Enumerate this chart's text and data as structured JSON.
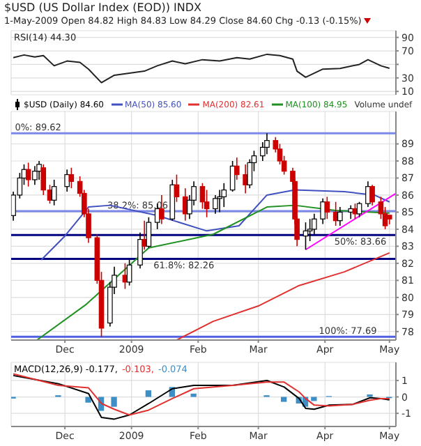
{
  "chart_data": [
    {
      "type": "line",
      "title": "$USD (US Dollar Index (EOD)) INDX",
      "subtitle": "1-May-2009 Open 84.82 High 84.83 Low 84.29 Close 84.60 Chg -0.13 (-0.15%)",
      "x": [
        "2008-11-07",
        "2008-11-12",
        "2008-11-17",
        "2008-11-21",
        "2008-11-26",
        "2008-12-02",
        "2008-12-08",
        "2008-12-12",
        "2008-12-18",
        "2008-12-24",
        "2008-12-31",
        "2009-01-07",
        "2009-01-13",
        "2009-01-20",
        "2009-01-26",
        "2009-02-03",
        "2009-02-11",
        "2009-02-19",
        "2009-02-25",
        "2009-03-05",
        "2009-03-11",
        "2009-03-17",
        "2009-03-19",
        "2009-03-23",
        "2009-03-31",
        "2009-04-08",
        "2009-04-17",
        "2009-04-21",
        "2009-04-27",
        "2009-05-01"
      ],
      "series": [
        {
          "name": "RSI(14) 44.30",
          "color": "#222222",
          "values": [
            60,
            64,
            61,
            63,
            48,
            55,
            53,
            43,
            23,
            34,
            37,
            40,
            48,
            55,
            51,
            57,
            55,
            60,
            58,
            65,
            63,
            58,
            40,
            31,
            43,
            44,
            50,
            57,
            48,
            44.3
          ]
        }
      ],
      "xlim": [
        "2008-11-06",
        "2009-05-04"
      ],
      "xticks": [
        {
          "value": "2008-12-01",
          "label": null
        },
        {
          "value": "2009-01-01",
          "label": null
        },
        {
          "value": "2009-02-01",
          "label": null
        },
        {
          "value": "2009-03-01",
          "label": null
        },
        {
          "value": "2009-04-01",
          "label": null
        },
        {
          "value": "2009-05-01",
          "label": null
        }
      ],
      "ylim": [
        5,
        100
      ],
      "yticks": [
        10,
        30,
        {
          "value": 50,
          "label": null
        },
        70,
        90
      ],
      "grid": true,
      "legend": "top left",
      "tick_labels": "y"
    },
    {
      "type": "candlestick",
      "x": [
        "2008-11-07",
        "2008-11-10",
        "2008-11-12",
        "2008-11-14",
        "2008-11-17",
        "2008-11-19",
        "2008-11-21",
        "2008-11-24",
        "2008-11-26",
        "2008-12-02",
        "2008-12-04",
        "2008-12-08",
        "2008-12-10",
        "2008-12-12",
        "2008-12-16",
        "2008-12-18",
        "2008-12-22",
        "2008-12-24",
        "2008-12-29",
        "2008-12-31",
        "2009-01-05",
        "2009-01-07",
        "2009-01-09",
        "2009-01-13",
        "2009-01-15",
        "2009-01-20",
        "2009-01-22",
        "2009-01-26",
        "2009-01-28",
        "2009-01-30",
        "2009-02-03",
        "2009-02-05",
        "2009-02-09",
        "2009-02-11",
        "2009-02-13",
        "2009-02-17",
        "2009-02-19",
        "2009-02-23",
        "2009-02-25",
        "2009-02-27",
        "2009-03-03",
        "2009-03-05",
        "2009-03-09",
        "2009-03-11",
        "2009-03-13",
        "2009-03-17",
        "2009-03-18",
        "2009-03-19",
        "2009-03-23",
        "2009-03-25",
        "2009-03-27",
        "2009-03-31",
        "2009-04-02",
        "2009-04-06",
        "2009-04-08",
        "2009-04-13",
        "2009-04-15",
        "2009-04-17",
        "2009-04-21",
        "2009-04-23",
        "2009-04-27",
        "2009-04-29",
        "2009-05-01"
      ],
      "series": [
        {
          "name": "$USD (Daily) 84.60",
          "color": "#000000",
          "colors": [
            "#000000",
            "#000000",
            "#000000",
            "#cc0000",
            "#000000",
            "#000000",
            "#cc0000",
            "#cc0000",
            "#000000",
            "#000000",
            "#cc0000",
            "#cc0000",
            "#cc0000",
            "#cc0000",
            "#cc0000",
            "#cc0000",
            "#000000",
            "#000000",
            "#cc0000",
            "#000000",
            "#000000",
            "#cc0000",
            "#000000",
            "#000000",
            "#cc0000",
            "#000000",
            "#cc0000",
            "#cc0000",
            "#000000",
            "#000000",
            "#cc0000",
            "#cc0000",
            "#000000",
            "#000000",
            "#000000",
            "#000000",
            "#cc0000",
            "#cc0000",
            "#000000",
            "#000000",
            "#000000",
            "#000000",
            "#cc0000",
            "#cc0000",
            "#cc0000",
            "#cc0000",
            "#cc0000",
            "#cc0000",
            "#000000",
            "#000000",
            "#000000",
            "#000000",
            "#cc0000",
            "#cc0000",
            "#000000",
            "#000000",
            "#cc0000",
            "#000000",
            "#000000",
            "#cc0000",
            "#cc0000",
            "#cc0000",
            "#cc0000"
          ],
          "ohlc": [
            [
              84.8,
              86.2,
              84.5,
              86.0
            ],
            [
              86.0,
              87.3,
              85.8,
              87.0
            ],
            [
              87.0,
              87.8,
              86.6,
              87.5
            ],
            [
              87.5,
              87.9,
              86.5,
              86.9
            ],
            [
              86.9,
              87.7,
              86.6,
              87.4
            ],
            [
              87.4,
              88.0,
              86.9,
              87.8
            ],
            [
              87.6,
              87.8,
              86.0,
              86.3
            ],
            [
              86.3,
              86.6,
              85.5,
              85.7
            ],
            [
              85.7,
              86.9,
              85.4,
              86.5
            ],
            [
              86.5,
              87.5,
              86.2,
              87.2
            ],
            [
              87.2,
              87.6,
              86.4,
              86.8
            ],
            [
              86.8,
              87.1,
              85.9,
              86.1
            ],
            [
              86.1,
              86.3,
              84.7,
              84.9
            ],
            [
              84.9,
              85.2,
              83.2,
              83.5
            ],
            [
              83.5,
              83.7,
              80.8,
              81.0
            ],
            [
              81.0,
              81.5,
              77.69,
              78.2
            ],
            [
              78.5,
              80.9,
              78.3,
              80.6
            ],
            [
              80.6,
              81.8,
              80.2,
              81.3
            ],
            [
              81.3,
              82.0,
              80.5,
              80.9
            ],
            [
              80.9,
              82.2,
              80.7,
              81.9
            ],
            [
              81.9,
              83.8,
              81.7,
              83.4
            ],
            [
              83.4,
              84.5,
              82.8,
              83.0
            ],
            [
              83.0,
              84.7,
              82.9,
              84.4
            ],
            [
              84.4,
              85.5,
              84.0,
              85.2
            ],
            [
              85.2,
              86.0,
              84.3,
              84.6
            ],
            [
              84.6,
              86.9,
              84.5,
              86.6
            ],
            [
              86.6,
              87.2,
              85.6,
              85.9
            ],
            [
              85.9,
              86.4,
              84.5,
              84.9
            ],
            [
              84.9,
              86.0,
              84.6,
              85.7
            ],
            [
              85.7,
              86.8,
              85.4,
              86.5
            ],
            [
              86.5,
              86.7,
              85.2,
              85.6
            ],
            [
              85.6,
              86.3,
              84.7,
              85.2
            ],
            [
              85.2,
              86.0,
              84.9,
              85.8
            ],
            [
              85.8,
              86.3,
              85.0,
              85.9
            ],
            [
              85.9,
              86.7,
              85.3,
              86.3
            ],
            [
              86.3,
              88.0,
              86.2,
              87.7
            ],
            [
              87.7,
              88.2,
              86.9,
              87.2
            ],
            [
              87.2,
              87.8,
              86.1,
              86.6
            ],
            [
              86.6,
              88.1,
              86.4,
              87.9
            ],
            [
              87.9,
              88.6,
              87.4,
              88.3
            ],
            [
              88.3,
              89.1,
              88.0,
              88.8
            ],
            [
              88.8,
              89.62,
              88.4,
              89.2
            ],
            [
              89.2,
              89.4,
              88.5,
              88.7
            ],
            [
              88.7,
              89.0,
              87.8,
              88.0
            ],
            [
              88.0,
              88.3,
              87.2,
              87.4
            ],
            [
              87.4,
              87.6,
              86.6,
              86.8
            ],
            [
              86.8,
              87.0,
              84.3,
              84.6
            ],
            [
              84.6,
              84.8,
              83.0,
              83.4
            ],
            [
              83.6,
              84.4,
              82.8,
              83.9
            ],
            [
              83.9,
              84.6,
              83.3,
              84.0
            ],
            [
              84.0,
              84.9,
              83.7,
              84.6
            ],
            [
              84.6,
              85.8,
              84.3,
              85.6
            ],
            [
              85.6,
              85.9,
              84.6,
              85.0
            ],
            [
              85.0,
              85.6,
              84.2,
              84.5
            ],
            [
              84.5,
              85.3,
              84.2,
              85.0
            ],
            [
              85.0,
              85.4,
              84.6,
              85.2
            ],
            [
              85.2,
              85.5,
              84.6,
              84.9
            ],
            [
              84.9,
              85.6,
              84.7,
              85.5
            ],
            [
              85.5,
              86.8,
              85.3,
              86.5
            ],
            [
              86.5,
              86.6,
              85.4,
              85.6
            ],
            [
              85.6,
              85.9,
              84.6,
              84.9
            ],
            [
              84.9,
              85.3,
              84.0,
              84.2
            ],
            [
              84.82,
              84.83,
              84.29,
              84.6
            ]
          ]
        },
        {
          "type": "line",
          "name": "MA(50) 85.60",
          "color": "#4050c0",
          "x": [
            "2008-11-20",
            "2008-12-01",
            "2008-12-12",
            "2008-12-22",
            "2009-01-13",
            "2009-02-05",
            "2009-02-20",
            "2009-03-05",
            "2009-03-18",
            "2009-04-10",
            "2009-04-24",
            "2009-05-01"
          ],
          "values": [
            82.2,
            83.6,
            85.3,
            85.4,
            84.8,
            83.9,
            84.2,
            86.0,
            86.3,
            86.2,
            86.0,
            85.6
          ]
        },
        {
          "type": "line",
          "name": "MA(200) 82.61",
          "color": "#e03030",
          "x": [
            "2009-01-22",
            "2009-02-08",
            "2009-03-01",
            "2009-03-20",
            "2009-04-10",
            "2009-05-01"
          ],
          "values": [
            77.5,
            78.6,
            79.5,
            80.7,
            81.5,
            82.61
          ]
        },
        {
          "type": "line",
          "name": "MA(100) 84.95",
          "color": "#209020",
          "x": [
            "2008-11-18",
            "2008-12-11",
            "2009-01-09",
            "2009-02-08",
            "2009-03-05",
            "2009-03-18",
            "2009-04-06",
            "2009-05-01"
          ],
          "values": [
            77.5,
            79.6,
            82.9,
            83.7,
            85.3,
            85.4,
            85.1,
            84.95
          ]
        },
        {
          "type": "line",
          "color": "#ff00ff",
          "x": [
            "2009-03-23",
            "2009-05-04"
          ],
          "values": [
            82.8,
            86.1
          ]
        }
      ],
      "ref_lines": [
        {
          "axis": "y",
          "value": 89.62,
          "label": "0%: 89.62",
          "color": "#7b88e8"
        },
        {
          "axis": "y",
          "value": 85.06,
          "label": "38.2%: 85.06",
          "color": "#7b88e8"
        },
        {
          "axis": "y",
          "value": 83.66,
          "label": "50%: 83.66",
          "color": "#000080"
        },
        {
          "axis": "y",
          "value": 82.26,
          "label": "61.8%: 82.26",
          "color": "#000080"
        },
        {
          "axis": "y",
          "value": 77.69,
          "label": "100%: 77.69",
          "color": "#5060e0"
        }
      ],
      "annotations": [
        "Volume undef"
      ],
      "xlim": [
        "2008-11-06",
        "2009-05-04"
      ],
      "xticks": [
        {
          "value": "2008-12-01",
          "label": "Dec"
        },
        {
          "value": "2009-01-01",
          "label": "2009"
        },
        {
          "value": "2009-02-01",
          "label": "Feb"
        },
        {
          "value": "2009-03-01",
          "label": "Mar"
        },
        {
          "value": "2009-04-01",
          "label": "Apr"
        },
        {
          "value": "2009-05-01",
          "label": "May"
        }
      ],
      "ylim": [
        77.5,
        90.9
      ],
      "yticks": [
        78,
        79,
        80,
        81,
        82,
        83,
        84,
        85,
        86,
        87,
        88,
        89
      ],
      "grid": true,
      "legend": "top"
    },
    {
      "type": "line",
      "x": [
        "2008-11-07",
        "2008-11-28",
        "2008-12-12",
        "2008-12-18",
        "2008-12-24",
        "2008-12-31",
        "2009-01-09",
        "2009-01-20",
        "2009-01-30",
        "2009-02-17",
        "2009-03-05",
        "2009-03-13",
        "2009-03-20",
        "2009-03-23",
        "2009-03-27",
        "2009-04-03",
        "2009-04-14",
        "2009-04-22",
        "2009-04-27",
        "2009-05-01"
      ],
      "series": [
        {
          "name": "MACD(12,26,9) -0.177,",
          "color": "#000000",
          "values": [
            1.3,
            0.8,
            0.2,
            -1.25,
            -1.35,
            -1.1,
            -0.4,
            0.5,
            0.7,
            0.7,
            1.0,
            0.6,
            -0.1,
            -0.7,
            -0.75,
            -0.5,
            -0.45,
            -0.05,
            -0.1,
            -0.177
          ]
        },
        {
          "name": "-0.103,",
          "color": "#e03030",
          "values": [
            1.4,
            0.7,
            0.55,
            -0.4,
            -0.75,
            -1.1,
            -0.8,
            -0.1,
            0.5,
            0.7,
            0.9,
            0.9,
            0.3,
            -0.1,
            -0.5,
            -0.55,
            -0.45,
            -0.2,
            -0.1,
            -0.103
          ]
        },
        {
          "type": "bar",
          "name": "-0.074",
          "color": "#3d8fc6",
          "values": [
            -0.1,
            0.1,
            -0.35,
            -0.85,
            -0.6,
            0,
            0.4,
            0.6,
            0.2,
            0,
            0.1,
            -0.3,
            -0.4,
            -0.6,
            -0.25,
            0.05,
            0,
            0.15,
            0,
            -0.074
          ]
        }
      ],
      "xlim": [
        "2008-11-06",
        "2009-05-04"
      ],
      "xticks": [
        {
          "value": "2008-12-01",
          "label": "Dec"
        },
        {
          "value": "2009-01-01",
          "label": "2009"
        },
        {
          "value": "2009-02-01",
          "label": "Feb"
        },
        {
          "value": "2009-03-01",
          "label": "Mar"
        },
        {
          "value": "2009-04-01",
          "label": "Apr"
        },
        {
          "value": "2009-05-01",
          "label": "May"
        }
      ],
      "ylim": [
        -1.8,
        2.1
      ],
      "yticks": [
        -1,
        0,
        1
      ],
      "grid": true,
      "legend": "top left"
    }
  ]
}
